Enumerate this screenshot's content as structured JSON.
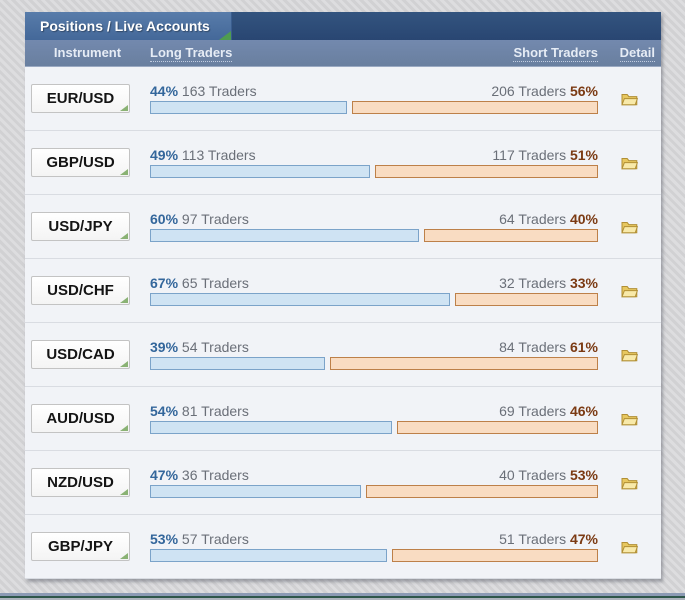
{
  "window": {
    "title_tab": "Positions / Live Accounts"
  },
  "table": {
    "columns": {
      "instrument": "Instrument",
      "long": "Long Traders",
      "short": "Short Traders",
      "detail": "Detail"
    },
    "rows": [
      {
        "instrument": "EUR/USD",
        "long_pct": "44%",
        "long_count": "163 Traders",
        "short_count": "206 Traders",
        "short_pct": "56%",
        "long_value": 44,
        "short_value": 56
      },
      {
        "instrument": "GBP/USD",
        "long_pct": "49%",
        "long_count": "113 Traders",
        "short_count": "117 Traders",
        "short_pct": "51%",
        "long_value": 49,
        "short_value": 51
      },
      {
        "instrument": "USD/JPY",
        "long_pct": "60%",
        "long_count": "97 Traders",
        "short_count": "64 Traders",
        "short_pct": "40%",
        "long_value": 60,
        "short_value": 40
      },
      {
        "instrument": "USD/CHF",
        "long_pct": "67%",
        "long_count": "65 Traders",
        "short_count": "32 Traders",
        "short_pct": "33%",
        "long_value": 67,
        "short_value": 33
      },
      {
        "instrument": "USD/CAD",
        "long_pct": "39%",
        "long_count": "54 Traders",
        "short_count": "84 Traders",
        "short_pct": "61%",
        "long_value": 39,
        "short_value": 61
      },
      {
        "instrument": "AUD/USD",
        "long_pct": "54%",
        "long_count": "81 Traders",
        "short_count": "69 Traders",
        "short_pct": "46%",
        "long_value": 54,
        "short_value": 46
      },
      {
        "instrument": "NZD/USD",
        "long_pct": "47%",
        "long_count": "36 Traders",
        "short_count": "40 Traders",
        "short_pct": "53%",
        "long_value": 47,
        "short_value": 53
      },
      {
        "instrument": "GBP/JPY",
        "long_pct": "53%",
        "long_count": "57 Traders",
        "short_count": "51 Traders",
        "short_pct": "47%",
        "long_value": 53,
        "short_value": 47
      }
    ]
  },
  "icons": {
    "detail": "folder-icon",
    "instrument_corner": "corner-triangle-icon",
    "tab_corner": "corner-triangle-icon"
  },
  "colors": {
    "long_bar_fill": "#cfe3f3",
    "long_bar_border": "#7ba3c9",
    "short_bar_fill": "#f9dcc2",
    "short_bar_border": "#bd8049",
    "long_pct_text": "#33669b",
    "short_pct_text": "#7b3a13",
    "count_text": "#6a6f78",
    "tab_blue": "#4a6d9b",
    "titlebar_navy": "#2d4d7c",
    "header_slate": "#6e85ab",
    "green_corner": "#4f9c50"
  }
}
